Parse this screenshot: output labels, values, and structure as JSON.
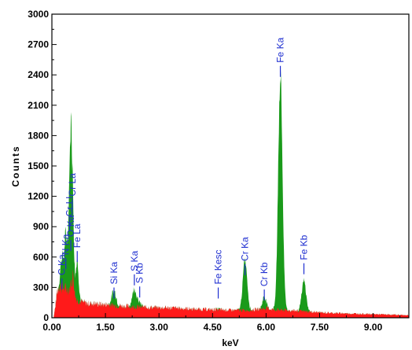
{
  "chart_data": {
    "type": "area",
    "title": "",
    "xlabel": "keV",
    "ylabel": "Counts",
    "xlim": [
      0,
      10
    ],
    "ylim": [
      0,
      3000
    ],
    "x_ticks": [
      "0.00",
      "1.50",
      "3.00",
      "4.50",
      "6.00",
      "7.50",
      "9.00"
    ],
    "x_tick_values": [
      0,
      1.5,
      3,
      4.5,
      6,
      7.5,
      9
    ],
    "y_ticks": [
      "0",
      "300",
      "600",
      "900",
      "1200",
      "1500",
      "1800",
      "2100",
      "2400",
      "2700",
      "3000"
    ],
    "y_tick_values": [
      0,
      300,
      600,
      900,
      1200,
      1500,
      1800,
      2100,
      2400,
      2700,
      3000
    ],
    "grid": false,
    "colors": {
      "background": "#ff1a1a",
      "peaks": "#1a9a1a",
      "labels": "#1f2fd0"
    },
    "background_spectrum": {
      "name": "",
      "x": [
        0.05,
        0.1,
        0.15,
        0.2,
        0.3,
        0.4,
        0.5,
        0.6,
        0.65,
        0.7,
        0.8,
        1.0,
        1.2,
        1.4,
        1.6,
        1.8,
        2.0,
        2.2,
        2.5,
        3.0,
        3.5,
        4.0,
        4.5,
        5.0,
        5.3,
        5.6,
        6.0,
        6.2,
        6.8,
        7.2,
        7.6,
        8.0,
        8.5,
        9.0,
        9.5,
        10.0
      ],
      "y": [
        0,
        120,
        260,
        320,
        300,
        280,
        300,
        420,
        220,
        180,
        160,
        140,
        140,
        130,
        130,
        120,
        115,
        110,
        105,
        100,
        95,
        85,
        80,
        75,
        75,
        75,
        95,
        80,
        70,
        60,
        50,
        45,
        40,
        35,
        30,
        25
      ]
    },
    "peaks": [
      {
        "label": "C Ka",
        "energy": 0.28,
        "height": 300,
        "label_count": 420,
        "width": 0.04
      },
      {
        "label": "N Ka",
        "energy": 0.39,
        "height": 520,
        "label_count": 620,
        "width": 0.04
      },
      {
        "label": "Cr Ll",
        "energy": 0.5,
        "height": 580,
        "label_count": 1000,
        "width": 0.04
      },
      {
        "label": "O Ka",
        "energy": 0.53,
        "height": 720,
        "label_count": 800,
        "width": 0.04
      },
      {
        "label": "Cr La",
        "energy": 0.57,
        "height": 680,
        "label_count": 1200,
        "width": 0.04
      },
      {
        "label": "Fe La",
        "energy": 0.71,
        "height": 380,
        "label_count": 690,
        "width": 0.04
      },
      {
        "label": "Si Ka",
        "energy": 1.74,
        "height": 150,
        "label_count": 330,
        "width": 0.06
      },
      {
        "label": "S Ka",
        "energy": 2.31,
        "height": 180,
        "label_count": 460,
        "width": 0.06
      },
      {
        "label": "S Kb",
        "energy": 2.46,
        "height": 40,
        "label_count": 340,
        "width": 0.05
      },
      {
        "label": "Fe Kesc",
        "energy": 4.66,
        "height": 10,
        "label_count": 330,
        "width": 0.05
      },
      {
        "label": "Cr Ka",
        "energy": 5.41,
        "height": 500,
        "label_count": 560,
        "width": 0.06
      },
      {
        "label": "Cr Kb",
        "energy": 5.95,
        "height": 120,
        "label_count": 310,
        "width": 0.05
      },
      {
        "label": "Fe Ka",
        "energy": 6.4,
        "height": 2330,
        "label_count": 2520,
        "width": 0.06
      },
      {
        "label": "Fe Kb",
        "energy": 7.06,
        "height": 300,
        "label_count": 570,
        "width": 0.06
      }
    ]
  }
}
